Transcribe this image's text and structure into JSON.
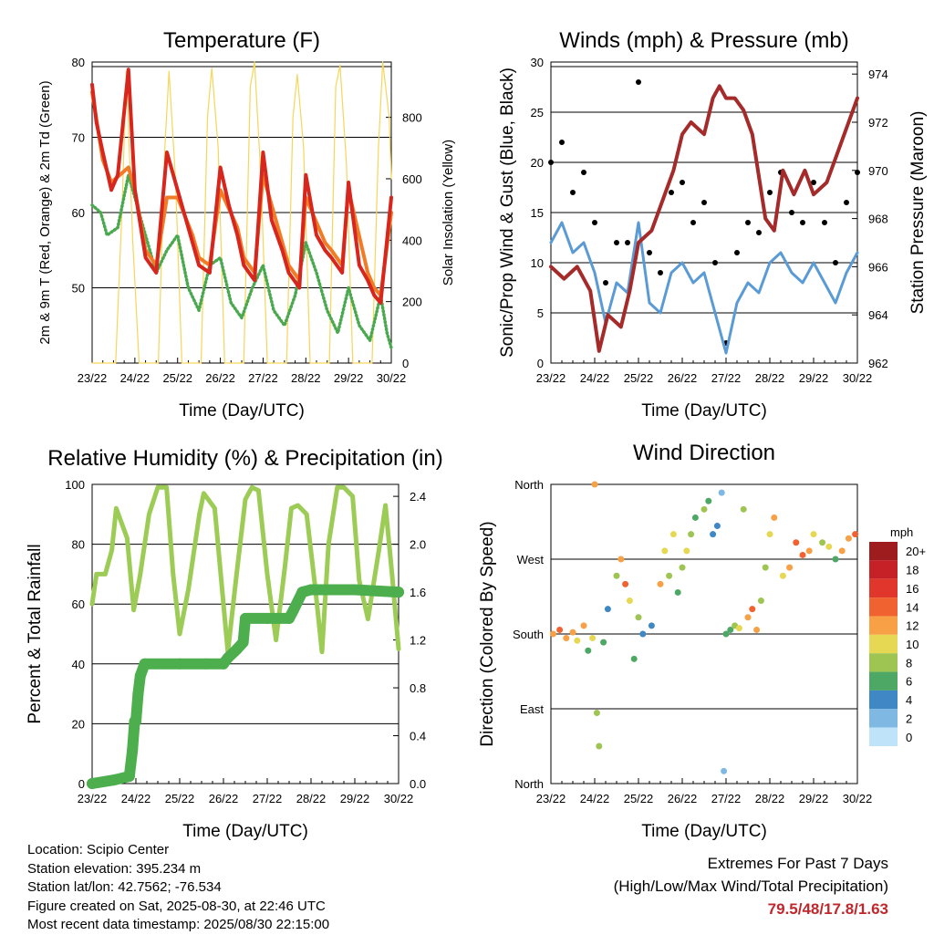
{
  "info": {
    "location": "Location: Scipio Center",
    "elevation": "Station elevation: 395.234 m",
    "latlon": "Station lat/lon: 42.7562; -76.534",
    "created": "Figure created on Sat, 2025-08-30, at 22:46 UTC",
    "latest": "Most recent data timestamp: 2025/08/30 22:15:00"
  },
  "extremes": {
    "title": "Extremes For Past 7 Days",
    "subtitle": "(High/Low/Max Wind/Total Precipitation)",
    "values": "79.5/48/17.8/1.63"
  },
  "chart_data": [
    {
      "type": "line",
      "title": "Temperature (F)",
      "xlabel": "Time (Day/UTC)",
      "ylabel": "2m & 9m T (Red, Orange) & 2m Td (Green)",
      "y2label": "Solar Insolation (Yellow)",
      "xticks": [
        "23/22",
        "24/22",
        "25/22",
        "26/22",
        "27/22",
        "28/22",
        "29/22",
        "30/22"
      ],
      "ylim": [
        40,
        80
      ],
      "yticks": [
        50,
        60,
        70,
        80
      ],
      "y2lim": [
        0,
        980
      ],
      "y2ticks": [
        0,
        200,
        400,
        600,
        800
      ],
      "grid": "horizontal",
      "series": [
        {
          "name": "2m T",
          "color": "#d7261e",
          "x": [
            0,
            0.1,
            0.25,
            0.45,
            0.6,
            0.85,
            1.0,
            1.25,
            1.5,
            1.75,
            2.0,
            2.15,
            2.35,
            2.5,
            2.75,
            3.0,
            3.2,
            3.4,
            3.55,
            3.8,
            4.0,
            4.2,
            4.45,
            4.6,
            4.85,
            5.0,
            5.25,
            5.45,
            5.6,
            5.85,
            6.0,
            6.25,
            6.45,
            6.6,
            6.75,
            7.0
          ],
          "values": [
            77,
            72,
            68,
            63,
            65,
            79,
            63,
            54,
            52,
            68,
            63,
            60,
            56,
            53,
            52,
            66,
            61,
            57,
            53,
            51,
            68,
            59,
            55,
            52,
            50,
            65,
            57,
            55,
            54,
            52,
            64,
            53,
            51,
            49,
            48,
            62
          ]
        },
        {
          "name": "9m T",
          "color": "#f07c26",
          "x": [
            0,
            0.25,
            0.45,
            0.85,
            1.0,
            1.25,
            1.5,
            1.75,
            2.0,
            2.35,
            2.5,
            2.75,
            3.0,
            3.4,
            3.55,
            3.8,
            4.0,
            4.45,
            4.6,
            4.85,
            5.0,
            5.45,
            5.6,
            5.85,
            6.0,
            6.45,
            6.6,
            6.75,
            7.0
          ],
          "values": [
            76,
            67,
            64,
            66,
            63,
            55,
            53,
            62,
            62,
            57,
            54,
            53,
            63,
            58,
            54,
            52,
            65,
            56,
            53,
            51,
            62,
            56,
            55,
            53,
            63,
            52,
            50,
            49,
            60
          ]
        },
        {
          "name": "2m Td",
          "color": "#4aa84e",
          "x": [
            0,
            0.2,
            0.35,
            0.6,
            0.85,
            1.0,
            1.2,
            1.5,
            1.75,
            2.0,
            2.25,
            2.5,
            2.75,
            3.0,
            3.25,
            3.5,
            3.75,
            4.0,
            4.25,
            4.5,
            4.75,
            5.0,
            5.25,
            5.5,
            5.75,
            6.0,
            6.25,
            6.5,
            6.75,
            6.9,
            7.0
          ],
          "values": [
            61,
            60,
            57,
            58,
            65,
            62,
            58,
            52,
            55,
            57,
            50,
            47,
            53,
            54,
            48,
            46,
            50,
            53,
            47,
            45,
            49,
            56,
            52,
            47,
            44,
            50,
            45,
            43,
            49,
            44,
            42
          ]
        },
        {
          "name": "Solar Insolation",
          "color": "#f6d65a",
          "axis": "right",
          "x": [
            0,
            0.55,
            0.7,
            0.8,
            0.95,
            1.1,
            1.55,
            1.7,
            1.8,
            1.95,
            2.1,
            2.55,
            2.7,
            2.8,
            2.95,
            3.1,
            3.55,
            3.7,
            3.8,
            3.95,
            4.1,
            4.55,
            4.7,
            4.8,
            4.95,
            5.1,
            5.55,
            5.7,
            5.8,
            5.95,
            6.1,
            6.55,
            6.7,
            6.8,
            6.95,
            7.0
          ],
          "values": [
            0,
            0,
            500,
            950,
            400,
            0,
            0,
            700,
            950,
            600,
            0,
            0,
            800,
            960,
            700,
            0,
            0,
            900,
            980,
            600,
            0,
            0,
            800,
            940,
            700,
            0,
            0,
            900,
            970,
            650,
            0,
            0,
            700,
            980,
            800,
            600
          ]
        }
      ]
    },
    {
      "type": "line",
      "title": "Winds (mph) & Pressure (mb)",
      "xlabel": "Time (Day/UTC)",
      "ylabel": "Sonic/Prop Wind & Gust (Blue, Black)",
      "y2label": "Station Pressure (Maroon)",
      "xticks": [
        "23/22",
        "24/22",
        "25/22",
        "26/22",
        "27/22",
        "28/22",
        "29/22",
        "30/22"
      ],
      "ylim": [
        0,
        30
      ],
      "yticks": [
        0,
        5,
        10,
        15,
        20,
        25,
        30
      ],
      "y2lim": [
        962,
        974.5
      ],
      "y2ticks": [
        962,
        964,
        966,
        968,
        970,
        972,
        974
      ],
      "grid": "horizontal",
      "series": [
        {
          "name": "Wind",
          "color": "#5b9bd5",
          "x": [
            0,
            0.25,
            0.5,
            0.75,
            1.0,
            1.25,
            1.5,
            1.75,
            2.0,
            2.25,
            2.5,
            2.75,
            3.0,
            3.25,
            3.5,
            3.75,
            4.0,
            4.25,
            4.5,
            4.75,
            5.0,
            5.25,
            5.5,
            5.75,
            6.0,
            6.25,
            6.5,
            6.75,
            7.0
          ],
          "values": [
            12,
            14,
            11,
            12,
            9,
            4,
            8,
            7,
            14,
            6,
            5,
            9,
            10,
            8,
            9,
            5,
            1,
            6,
            8,
            7,
            10,
            11,
            9,
            8,
            10,
            8,
            6,
            9,
            11
          ]
        },
        {
          "name": "Gust",
          "color": "#000000",
          "x": [
            0,
            0.25,
            0.5,
            0.75,
            1.0,
            1.25,
            1.5,
            1.75,
            2.0,
            2.25,
            2.5,
            2.75,
            3.0,
            3.25,
            3.5,
            3.75,
            4.0,
            4.25,
            4.5,
            4.75,
            5.0,
            5.25,
            5.5,
            5.75,
            6.0,
            6.25,
            6.5,
            6.75,
            7.0
          ],
          "values": [
            20,
            22,
            17,
            19,
            14,
            8,
            12,
            12,
            28,
            11,
            9,
            17,
            18,
            14,
            16,
            10,
            2,
            11,
            14,
            13,
            17,
            19,
            15,
            14,
            18,
            14,
            10,
            16,
            19
          ]
        },
        {
          "name": "Pressure",
          "color": "#a52a2a",
          "axis": "right",
          "x": [
            0,
            0.3,
            0.6,
            0.9,
            1.1,
            1.3,
            1.6,
            1.8,
            2.0,
            2.3,
            2.5,
            2.8,
            3.0,
            3.2,
            3.5,
            3.7,
            3.85,
            4.0,
            4.2,
            4.4,
            4.6,
            4.9,
            5.1,
            5.3,
            5.55,
            5.8,
            6.0,
            6.3,
            6.6,
            6.8,
            7.0
          ],
          "values": [
            966,
            965.5,
            966,
            965,
            962.5,
            964,
            963.5,
            965,
            967,
            967.5,
            968.5,
            970,
            971.5,
            972,
            971.5,
            973,
            973.5,
            973,
            973,
            972.5,
            971.5,
            968,
            967.5,
            970,
            969,
            970,
            969,
            969.5,
            971,
            972,
            973
          ]
        }
      ]
    },
    {
      "type": "line",
      "title": "Relative Humidity (%) & Precipitation (in)",
      "xlabel": "Time (Day/UTC)",
      "ylabel": "Percent & Total Rainfall",
      "xticks": [
        "23/22",
        "24/22",
        "25/22",
        "26/22",
        "27/22",
        "28/22",
        "29/22",
        "30/22"
      ],
      "ylim": [
        0,
        100
      ],
      "yticks": [
        0,
        20,
        40,
        60,
        80,
        100
      ],
      "y2lim": [
        0,
        2.5
      ],
      "y2ticks": [
        0.0,
        0.4,
        0.8,
        1.2,
        1.6,
        2.0,
        2.4
      ],
      "grid": "horizontal",
      "series": [
        {
          "name": "RH",
          "color": "#9ccc55",
          "x": [
            0,
            0.1,
            0.3,
            0.45,
            0.55,
            0.8,
            0.95,
            1.1,
            1.3,
            1.5,
            1.7,
            1.85,
            2.0,
            2.2,
            2.45,
            2.55,
            2.8,
            2.95,
            3.1,
            3.3,
            3.5,
            3.65,
            3.8,
            4.0,
            4.2,
            4.4,
            4.55,
            4.7,
            4.9,
            5.1,
            5.25,
            5.4,
            5.6,
            5.75,
            5.95,
            6.1,
            6.3,
            6.55,
            6.7,
            6.85,
            7.0
          ],
          "values": [
            60,
            70,
            70,
            78,
            92,
            82,
            58,
            70,
            90,
            99,
            99,
            70,
            50,
            65,
            90,
            97,
            92,
            68,
            44,
            70,
            95,
            99,
            98,
            70,
            48,
            72,
            92,
            93,
            90,
            65,
            44,
            80,
            99,
            99,
            96,
            68,
            55,
            78,
            93,
            70,
            45
          ]
        },
        {
          "name": "Total Rainfall",
          "color": "#4cae4c",
          "axis": "right",
          "x": [
            0,
            0.5,
            0.85,
            0.92,
            0.97,
            1.0,
            1.05,
            1.1,
            1.2,
            2.0,
            2.6,
            3.0,
            3.1,
            3.3,
            3.45,
            3.5,
            4.0,
            4.5,
            4.6,
            4.8,
            5.0,
            6.0,
            7.0
          ],
          "values": [
            0.0,
            0.03,
            0.06,
            0.28,
            0.52,
            0.52,
            0.75,
            0.9,
            1.0,
            1.0,
            1.0,
            1.0,
            1.05,
            1.12,
            1.18,
            1.38,
            1.38,
            1.38,
            1.45,
            1.6,
            1.62,
            1.62,
            1.6
          ]
        }
      ]
    },
    {
      "type": "scatter",
      "title": "Wind Direction",
      "xlabel": "Time (Day/UTC)",
      "ylabel": "Direction (Colored By Speed)",
      "xticks": [
        "23/22",
        "24/22",
        "25/22",
        "26/22",
        "27/22",
        "28/22",
        "29/22",
        "30/22"
      ],
      "yticks": [
        "North",
        "East",
        "South",
        "West",
        "North"
      ],
      "ylim": [
        0,
        360
      ],
      "grid": "horizontal",
      "colorbar": {
        "title": "mph",
        "labels": [
          "20+",
          "18",
          "16",
          "14",
          "12",
          "10",
          "8",
          "6",
          "4",
          "2",
          "0"
        ],
        "colors": [
          "#9e1b1e",
          "#c62127",
          "#e1362c",
          "#f0622f",
          "#f7a045",
          "#e7d854",
          "#9ec552",
          "#4ea865",
          "#3f88c5",
          "#7fb8e3",
          "#bfe3f8"
        ]
      },
      "series": [
        {
          "name": "Direction",
          "x": [
            0.05,
            0.2,
            0.35,
            0.5,
            0.6,
            0.75,
            0.85,
            0.95,
            1.0,
            1.05,
            1.1,
            1.2,
            1.3,
            1.5,
            1.6,
            1.7,
            1.8,
            1.9,
            2.0,
            2.1,
            2.3,
            2.5,
            2.6,
            2.7,
            2.8,
            2.9,
            3.0,
            3.1,
            3.2,
            3.3,
            3.5,
            3.6,
            3.7,
            3.8,
            3.9,
            3.95,
            4.0,
            4.1,
            4.2,
            4.3,
            4.4,
            4.5,
            4.6,
            4.7,
            4.8,
            4.9,
            5.0,
            5.1,
            5.3,
            5.45,
            5.6,
            5.75,
            5.9,
            6.0,
            6.2,
            6.35,
            6.5,
            6.65,
            6.8,
            6.95
          ],
          "values": [
            180,
            185,
            175,
            182,
            172,
            190,
            160,
            175,
            360,
            85,
            45,
            170,
            210,
            250,
            270,
            240,
            220,
            150,
            200,
            180,
            190,
            240,
            280,
            250,
            300,
            230,
            260,
            280,
            300,
            320,
            330,
            340,
            300,
            310,
            350,
            15,
            180,
            185,
            190,
            187,
            330,
            200,
            210,
            185,
            220,
            260,
            300,
            320,
            250,
            260,
            290,
            275,
            280,
            300,
            290,
            285,
            270,
            280,
            295,
            300
          ],
          "speeds": [
            12,
            14,
            13,
            12,
            10,
            13,
            7,
            11,
            12,
            9,
            8,
            6,
            5,
            9,
            12,
            14,
            10,
            6,
            9,
            5,
            4,
            12,
            10,
            8,
            11,
            7,
            9,
            10,
            8,
            6,
            9,
            7,
            5,
            4,
            3,
            2,
            6,
            7,
            8,
            10,
            8,
            13,
            14,
            12,
            8,
            9,
            11,
            13,
            10,
            12,
            14,
            15,
            13,
            11,
            9,
            10,
            6,
            12,
            13,
            14
          ]
        }
      ]
    }
  ]
}
